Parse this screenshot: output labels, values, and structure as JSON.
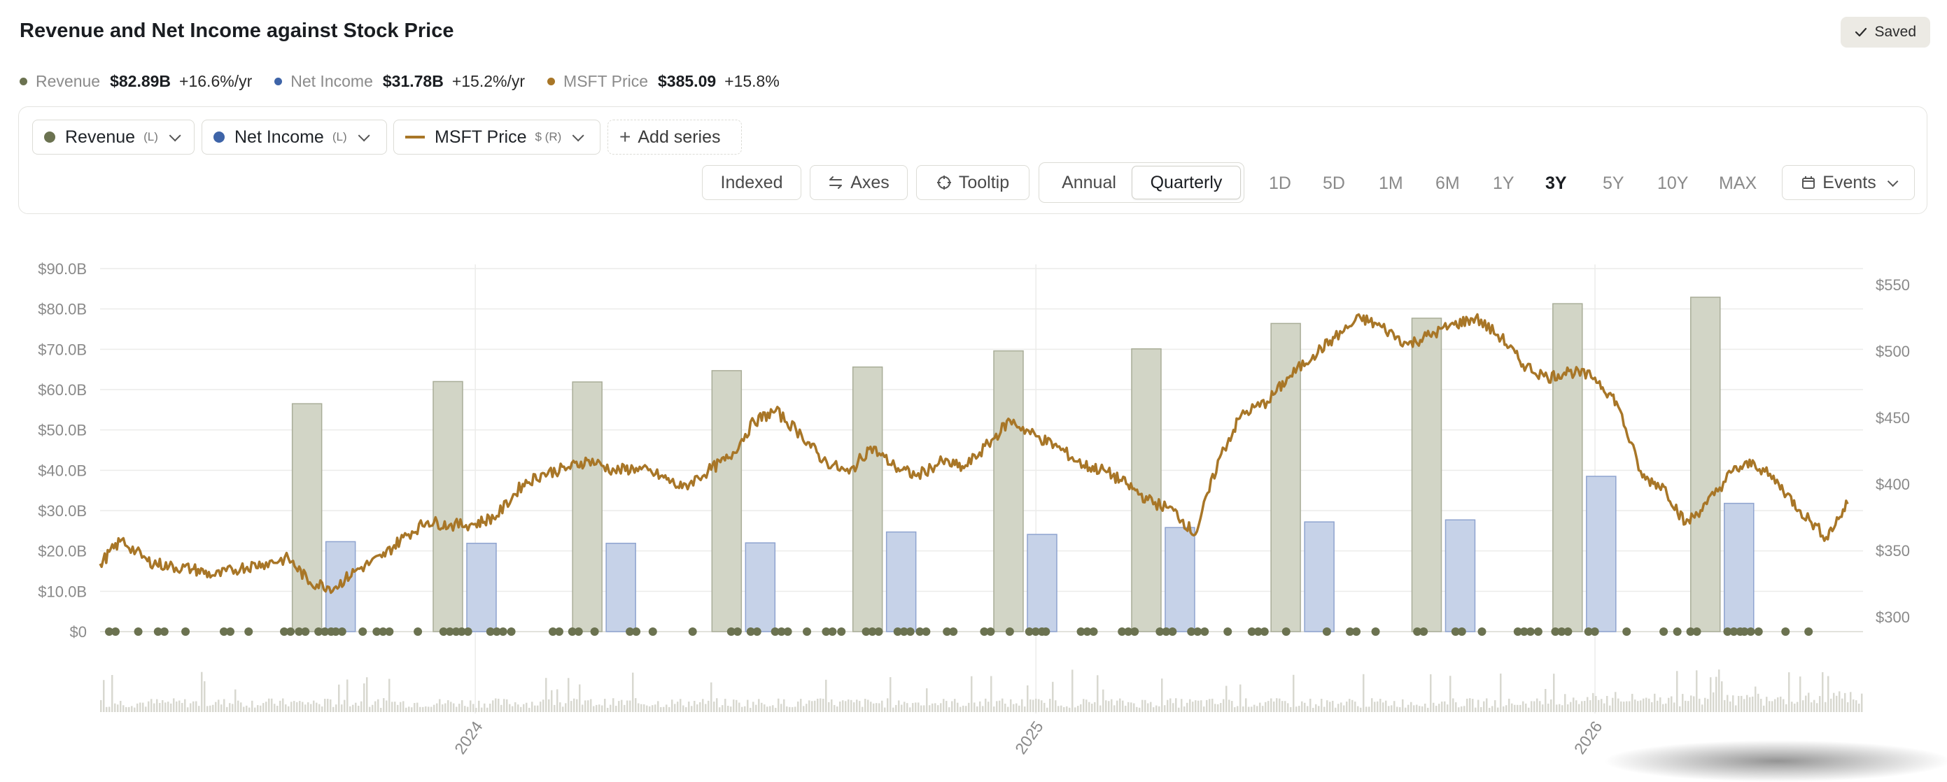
{
  "title": "Revenue and Net Income against Stock Price",
  "saved_label": "Saved",
  "summary": [
    {
      "name": "Revenue",
      "value": "$82.89B",
      "change": "+16.6%/yr",
      "color": "#6b7250"
    },
    {
      "name": "Net Income",
      "value": "$31.78B",
      "change": "+15.2%/yr",
      "color": "#3e64a8"
    },
    {
      "name": "MSFT Price",
      "value": "$385.09",
      "change": "+15.8%",
      "color": "#a87627"
    }
  ],
  "series_pills": [
    {
      "label": "Revenue",
      "axis": "(L)",
      "color": "#6b7250"
    },
    {
      "label": "Net Income",
      "axis": "(L)",
      "color": "#3e64a8"
    },
    {
      "label": "MSFT Price",
      "axis": "$ (R)",
      "color": "#a87627"
    }
  ],
  "add_series_label": "Add series",
  "controls": {
    "indexed": "Indexed",
    "axes": "Axes",
    "tooltip": "Tooltip",
    "annual": "Annual",
    "quarterly": "Quarterly",
    "events": "Events"
  },
  "ranges": [
    "1D",
    "5D",
    "1M",
    "6M",
    "1Y",
    "3Y",
    "5Y",
    "10Y",
    "MAX"
  ],
  "active_range": "3Y",
  "chart_data": {
    "type": "bar+line",
    "x_ticks": [
      "2024",
      "2025",
      "2026"
    ],
    "left_axis": {
      "ticks": [
        "$0",
        "$10.0B",
        "$20.0B",
        "$30.0B",
        "$40.0B",
        "$50.0B",
        "$60.0B",
        "$70.0B",
        "$80.0B",
        "$90.0B"
      ],
      "range": [
        0,
        90
      ]
    },
    "right_axis": {
      "ticks": [
        "$300",
        "$350",
        "$400",
        "$450",
        "$500",
        "$550"
      ],
      "range": [
        290,
        565
      ]
    },
    "quarters": [
      "2023-09-30",
      "2023-12-31",
      "2024-03-31",
      "2024-06-30",
      "2024-09-30",
      "2024-12-31",
      "2025-03-31",
      "2025-06-30",
      "2025-09-30",
      "2025-12-31",
      "2026-03-31"
    ],
    "revenue": [
      56.5,
      62.0,
      61.9,
      64.7,
      65.6,
      69.6,
      70.1,
      76.4,
      77.7,
      81.3,
      82.9
    ],
    "net_income": [
      22.3,
      21.9,
      21.9,
      22.0,
      24.7,
      24.1,
      25.8,
      27.2,
      27.7,
      38.5,
      31.8
    ],
    "price": [
      [
        "2023-05-01",
        340
      ],
      [
        "2023-05-15",
        358
      ],
      [
        "2023-06-01",
        342
      ],
      [
        "2023-06-15",
        338
      ],
      [
        "2023-07-01",
        336
      ],
      [
        "2023-07-15",
        331
      ],
      [
        "2023-08-01",
        337
      ],
      [
        "2023-08-15",
        340
      ],
      [
        "2023-09-01",
        344
      ],
      [
        "2023-09-15",
        326
      ],
      [
        "2023-10-01",
        322
      ],
      [
        "2023-10-15",
        335
      ],
      [
        "2023-11-01",
        345
      ],
      [
        "2023-11-15",
        360
      ],
      [
        "2023-12-01",
        372
      ],
      [
        "2023-12-15",
        369
      ],
      [
        "2024-01-01",
        370
      ],
      [
        "2024-01-15",
        376
      ],
      [
        "2024-02-01",
        400
      ],
      [
        "2024-02-15",
        408
      ],
      [
        "2024-03-01",
        412
      ],
      [
        "2024-03-15",
        418
      ],
      [
        "2024-04-01",
        410
      ],
      [
        "2024-04-15",
        412
      ],
      [
        "2024-05-01",
        406
      ],
      [
        "2024-05-15",
        397
      ],
      [
        "2024-06-01",
        410
      ],
      [
        "2024-06-15",
        420
      ],
      [
        "2024-07-01",
        447
      ],
      [
        "2024-07-15",
        455
      ],
      [
        "2024-08-01",
        437
      ],
      [
        "2024-08-15",
        418
      ],
      [
        "2024-09-01",
        408
      ],
      [
        "2024-09-15",
        428
      ],
      [
        "2024-10-01",
        413
      ],
      [
        "2024-10-15",
        406
      ],
      [
        "2024-11-01",
        417
      ],
      [
        "2024-11-15",
        412
      ],
      [
        "2024-12-01",
        430
      ],
      [
        "2024-12-15",
        448
      ],
      [
        "2025-01-01",
        436
      ],
      [
        "2025-01-15",
        428
      ],
      [
        "2025-02-01",
        414
      ],
      [
        "2025-02-15",
        410
      ],
      [
        "2025-03-01",
        400
      ],
      [
        "2025-03-15",
        388
      ],
      [
        "2025-04-01",
        380
      ],
      [
        "2025-04-15",
        362
      ],
      [
        "2025-05-01",
        420
      ],
      [
        "2025-05-15",
        452
      ],
      [
        "2025-06-01",
        462
      ],
      [
        "2025-06-15",
        480
      ],
      [
        "2025-07-01",
        497
      ],
      [
        "2025-07-15",
        510
      ],
      [
        "2025-08-01",
        525
      ],
      [
        "2025-08-15",
        518
      ],
      [
        "2025-09-01",
        505
      ],
      [
        "2025-09-15",
        512
      ],
      [
        "2025-10-01",
        520
      ],
      [
        "2025-10-15",
        525
      ],
      [
        "2025-11-01",
        510
      ],
      [
        "2025-11-15",
        490
      ],
      [
        "2025-12-01",
        480
      ],
      [
        "2025-12-15",
        485
      ],
      [
        "2026-01-01",
        480
      ],
      [
        "2026-01-15",
        462
      ],
      [
        "2026-02-01",
        405
      ],
      [
        "2026-02-15",
        398
      ],
      [
        "2026-03-01",
        370
      ],
      [
        "2026-03-15",
        385
      ],
      [
        "2026-04-01",
        410
      ],
      [
        "2026-04-15",
        416
      ],
      [
        "2026-05-01",
        400
      ],
      [
        "2026-05-15",
        380
      ],
      [
        "2026-06-01",
        360
      ],
      [
        "2026-06-15",
        385
      ]
    ],
    "grid": "horizontal + yearly vertical",
    "legend": "top-left"
  }
}
